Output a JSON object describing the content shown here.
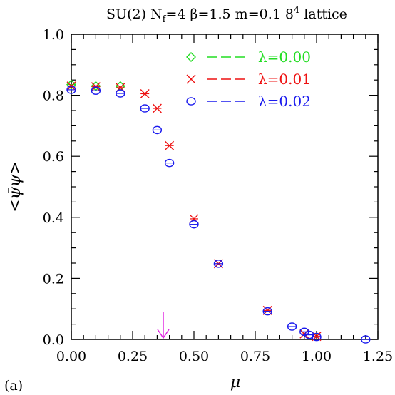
{
  "chart_data": {
    "type": "scatter",
    "title_parts": {
      "pre": "SU(2) N",
      "sub": "f",
      "post": "=4 β=1.5 m=0.1 8",
      "sup": "4",
      "tail": " lattice"
    },
    "xlabel": "μ",
    "ylabel": "<ψ̄ψ>",
    "panel_label": "(a)",
    "xlim": [
      0,
      1.25
    ],
    "ylim": [
      0,
      1.0
    ],
    "x_ticks": [
      "0.00",
      "0.25",
      "0.50",
      "0.75",
      "1.00",
      "1.25"
    ],
    "x_tick_values": [
      0,
      0.25,
      0.5,
      0.75,
      1.0,
      1.25
    ],
    "y_ticks": [
      "0.0",
      "0.2",
      "0.4",
      "0.6",
      "0.8",
      "1.0"
    ],
    "y_tick_values": [
      0,
      0.2,
      0.4,
      0.6,
      0.8,
      1.0
    ],
    "grid": false,
    "legend_position": "top-right",
    "arrow_mu": 0.375,
    "series": [
      {
        "name": "λ=0.00",
        "color": "#22dd22",
        "marker": "diamond",
        "x": [
          0.0,
          0.1,
          0.2
        ],
        "y": [
          0.835,
          0.83,
          0.83
        ]
      },
      {
        "name": "λ=0.01",
        "color": "#ee1111",
        "marker": "cross",
        "x": [
          0.0,
          0.1,
          0.2,
          0.3,
          0.35,
          0.4,
          0.5,
          0.6,
          0.8,
          0.95,
          1.0
        ],
        "y": [
          0.83,
          0.828,
          0.825,
          0.805,
          0.757,
          0.635,
          0.395,
          0.248,
          0.095,
          0.018,
          0.01
        ]
      },
      {
        "name": "λ=0.02",
        "color": "#1a1aee",
        "marker": "circle",
        "x": [
          0.0,
          0.1,
          0.2,
          0.3,
          0.35,
          0.4,
          0.5,
          0.6,
          0.8,
          0.9,
          0.95,
          0.97,
          1.0,
          1.2
        ],
        "y": [
          0.818,
          0.815,
          0.806,
          0.757,
          0.686,
          0.578,
          0.377,
          0.248,
          0.092,
          0.042,
          0.025,
          0.015,
          0.008,
          0.0
        ]
      }
    ]
  }
}
